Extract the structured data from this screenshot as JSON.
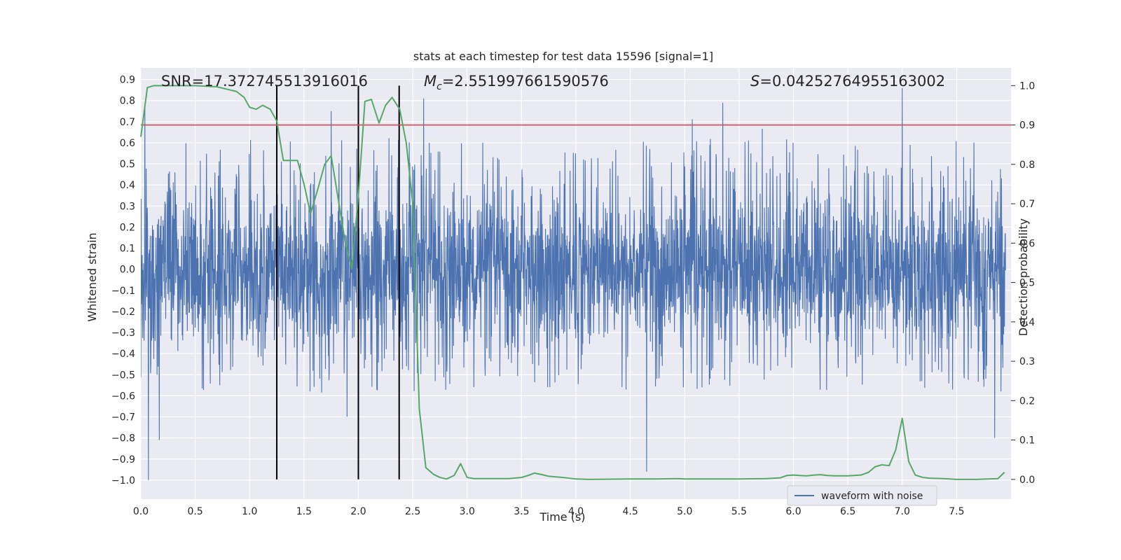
{
  "chart_data": {
    "type": "line",
    "title": "stats at each timestep for test data 15596 [signal=1]",
    "xlabel": "Time (s)",
    "ylabel": "Whitened strain",
    "y2label": "Detection probability",
    "xlim": [
      0,
      8
    ],
    "ylim": [
      -1.09,
      0.955
    ],
    "y2lim": [
      -0.05,
      1.045
    ],
    "x_ticks": [
      0.0,
      0.5,
      1.0,
      1.5,
      2.0,
      2.5,
      3.0,
      3.5,
      4.0,
      4.5,
      5.0,
      5.5,
      6.0,
      6.5,
      7.0,
      7.5
    ],
    "y_ticks": [
      -1.0,
      -0.9,
      -0.8,
      -0.7,
      -0.6,
      -0.5,
      -0.4,
      -0.3,
      -0.2,
      -0.1,
      0.0,
      0.1,
      0.2,
      0.3,
      0.4,
      0.5,
      0.6,
      0.7,
      0.8,
      0.9
    ],
    "y2_ticks": [
      0.0,
      0.1,
      0.2,
      0.3,
      0.4,
      0.5,
      0.6,
      0.7,
      0.8,
      0.9,
      1.0
    ],
    "grid": true,
    "legend": {
      "location": "lower-right",
      "entries": [
        "waveform with noise"
      ]
    },
    "annotations": {
      "snr": "SNR=17.372745513916016",
      "mc_symbol": "M",
      "mc_sub": "c",
      "mc_value": "=2.551997661590576",
      "s_symbol": "S",
      "s_value": "=0.04252764955163002"
    },
    "vertical_lines_x": [
      1.25,
      2.0,
      2.375
    ],
    "threshold_y2": 0.9,
    "waveform": {
      "name": "waveform with noise",
      "color": "#4c72b0",
      "envelope_core": 0.3,
      "typical_peak_range": [
        -0.58,
        0.62
      ],
      "notable_peaks": [
        {
          "x": 0.07,
          "y": -1.0
        },
        {
          "x": 0.17,
          "y": -0.81
        },
        {
          "x": 1.75,
          "y": 0.75
        },
        {
          "x": 2.6,
          "y": 0.81
        },
        {
          "x": 4.65,
          "y": -0.96
        },
        {
          "x": 5.35,
          "y": 0.79
        },
        {
          "x": 7.0,
          "y": 0.86
        },
        {
          "x": 7.85,
          "y": -0.8
        }
      ]
    },
    "series": [
      {
        "name": "detection probability",
        "axis": "right",
        "color": "#55a868",
        "x": [
          0.0,
          0.06,
          0.12,
          0.25,
          0.5,
          0.7,
          0.88,
          0.95,
          1.0,
          1.06,
          1.12,
          1.19,
          1.25,
          1.31,
          1.38,
          1.44,
          1.5,
          1.56,
          1.62,
          1.69,
          1.75,
          1.81,
          1.88,
          1.94,
          2.0,
          2.06,
          2.12,
          2.19,
          2.25,
          2.31,
          2.38,
          2.44,
          2.5,
          2.56,
          2.62,
          2.69,
          2.75,
          2.81,
          2.88,
          2.94,
          3.0,
          3.06,
          3.12,
          3.25,
          3.38,
          3.5,
          3.56,
          3.62,
          3.69,
          3.75,
          3.88,
          4.0,
          4.12,
          4.5,
          4.75,
          4.94,
          5.0,
          5.25,
          5.5,
          5.75,
          5.88,
          5.94,
          6.0,
          6.06,
          6.12,
          6.19,
          6.25,
          6.31,
          6.38,
          6.5,
          6.62,
          6.69,
          6.75,
          6.81,
          6.88,
          6.94,
          7.0,
          7.06,
          7.12,
          7.19,
          7.25,
          7.38,
          7.5,
          7.69,
          7.88,
          7.94
        ],
        "y": [
          0.87,
          0.995,
          1.0,
          1.0,
          1.0,
          0.997,
          0.985,
          0.97,
          0.945,
          0.94,
          0.95,
          0.94,
          0.91,
          0.81,
          0.81,
          0.81,
          0.75,
          0.675,
          0.73,
          0.8,
          0.822,
          0.72,
          0.6,
          0.535,
          0.72,
          0.96,
          0.965,
          0.905,
          0.95,
          0.97,
          0.94,
          0.855,
          0.7,
          0.18,
          0.03,
          0.013,
          0.005,
          0.001,
          0.01,
          0.04,
          0.005,
          0.002,
          0.002,
          0.002,
          0.002,
          0.005,
          0.01,
          0.016,
          0.012,
          0.008,
          0.005,
          0.001,
          0.0,
          0.001,
          0.001,
          0.002,
          0.001,
          0.001,
          0.001,
          0.002,
          0.004,
          0.01,
          0.011,
          0.01,
          0.009,
          0.011,
          0.012,
          0.01,
          0.009,
          0.009,
          0.011,
          0.018,
          0.032,
          0.037,
          0.035,
          0.075,
          0.155,
          0.045,
          0.011,
          0.005,
          0.003,
          0.002,
          0.0,
          0.0,
          0.002,
          0.018
        ]
      }
    ]
  }
}
